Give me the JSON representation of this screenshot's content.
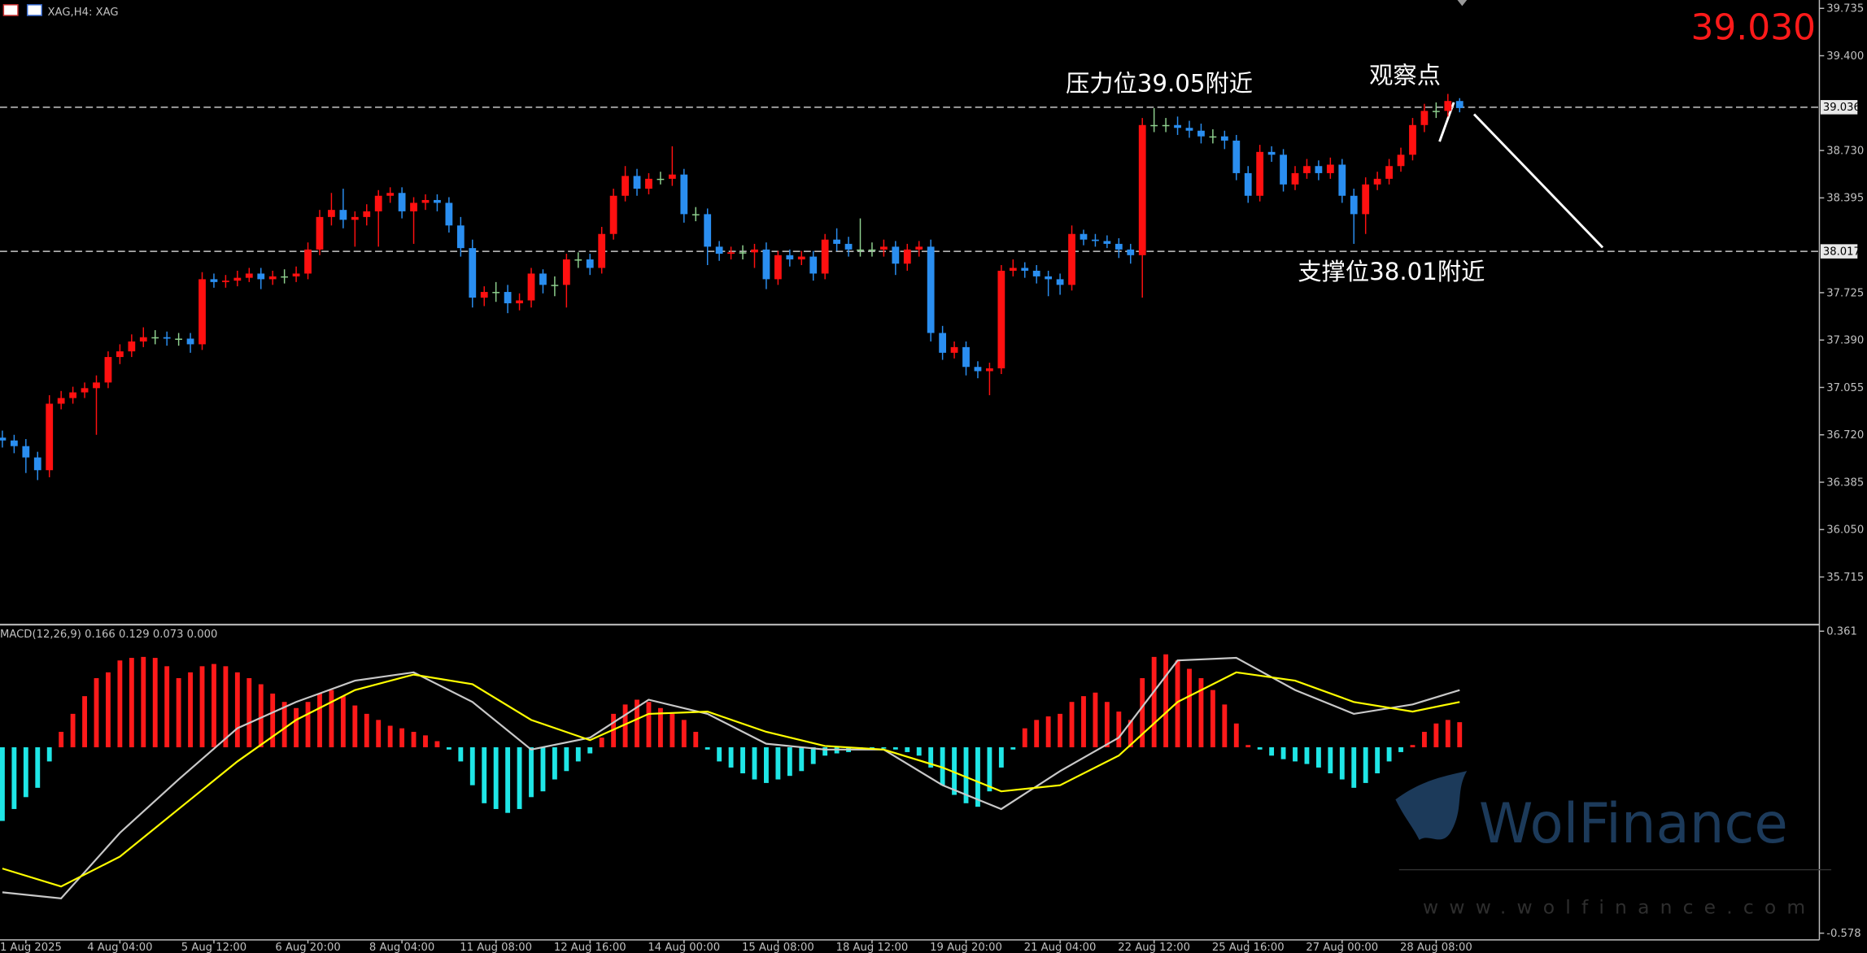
{
  "title": "XAG,H4: XAG",
  "last_price": {
    "value": 39.03,
    "label": "39.030"
  },
  "watermark": {
    "brand": "WolFinance",
    "url": "www.wolfinance.com"
  },
  "chart_data": [
    {
      "type": "candlestick",
      "up_color": "#ff1010",
      "down_color": "#2a8ef0",
      "doji_color": "#8fd18f",
      "ylim": [
        35.395,
        39.794
      ],
      "yticks": [
        39.735,
        {
          "value": 39.4,
          "label": "39.400"
        },
        {
          "value": 38.73,
          "label": "38.730"
        },
        38.395,
        37.725,
        {
          "value": 37.39,
          "label": "37.390"
        },
        37.055,
        {
          "value": 36.72,
          "label": "36.720"
        },
        36.385,
        {
          "value": 36.05,
          "label": "36.050"
        },
        35.715
      ],
      "levels": [
        {
          "value": 39.036,
          "label": "39.036"
        },
        {
          "value": 38.017,
          "label": "38.017"
        }
      ],
      "annotations": [
        "压力位39.05附近",
        "观察点",
        "支撑位38.01附近"
      ],
      "x_labels": [
        "1 Aug 2025",
        "4 Aug 04:00",
        "5 Aug 12:00",
        "6 Aug 20:00",
        "8 Aug 04:00",
        "11 Aug 08:00",
        "12 Aug 16:00",
        "14 Aug 00:00",
        "15 Aug 08:00",
        "18 Aug 12:00",
        "19 Aug 20:00",
        "21 Aug 04:00",
        "22 Aug 12:00",
        "25 Aug 16:00",
        "27 Aug 00:00",
        "28 Aug 08:00"
      ],
      "candles": [
        [
          36.7,
          36.75,
          36.63,
          36.68
        ],
        [
          36.68,
          36.72,
          36.59,
          36.64
        ],
        [
          36.64,
          36.69,
          36.45,
          36.56
        ],
        [
          36.56,
          36.6,
          36.4,
          36.47
        ],
        [
          36.47,
          37.0,
          36.42,
          36.94
        ],
        [
          36.94,
          37.03,
          36.9,
          36.98
        ],
        [
          36.98,
          37.06,
          36.94,
          37.02
        ],
        [
          37.02,
          37.09,
          36.98,
          37.05
        ],
        [
          37.05,
          37.14,
          36.72,
          37.09
        ],
        [
          37.09,
          37.31,
          37.05,
          37.27
        ],
        [
          37.27,
          37.36,
          37.22,
          37.31
        ],
        [
          37.31,
          37.43,
          37.27,
          37.38
        ],
        [
          37.38,
          37.48,
          37.34,
          37.41
        ],
        [
          37.41,
          37.46,
          37.36,
          37.41
        ],
        [
          37.41,
          37.45,
          37.35,
          37.4
        ],
        [
          37.4,
          37.44,
          37.35,
          37.4
        ],
        [
          37.4,
          37.44,
          37.3,
          37.36
        ],
        [
          37.36,
          37.87,
          37.32,
          37.82
        ],
        [
          37.82,
          37.86,
          37.76,
          37.8
        ],
        [
          37.8,
          37.85,
          37.76,
          37.81
        ],
        [
          37.81,
          37.88,
          37.77,
          37.83
        ],
        [
          37.83,
          37.9,
          37.8,
          37.86
        ],
        [
          37.86,
          37.9,
          37.75,
          37.82
        ],
        [
          37.82,
          37.88,
          37.78,
          37.84
        ],
        [
          37.84,
          37.89,
          37.79,
          37.84
        ],
        [
          37.84,
          37.91,
          37.8,
          37.86
        ],
        [
          37.86,
          38.08,
          37.82,
          38.03
        ],
        [
          38.03,
          38.31,
          37.99,
          38.26
        ],
        [
          38.26,
          38.43,
          38.2,
          38.31
        ],
        [
          38.31,
          38.46,
          38.18,
          38.24
        ],
        [
          38.24,
          38.3,
          38.05,
          38.26
        ],
        [
          38.26,
          38.35,
          38.2,
          38.3
        ],
        [
          38.3,
          38.45,
          38.05,
          38.41
        ],
        [
          38.41,
          38.47,
          38.36,
          38.43
        ],
        [
          38.43,
          38.47,
          38.25,
          38.3
        ],
        [
          38.3,
          38.4,
          38.07,
          38.36
        ],
        [
          38.36,
          38.42,
          38.31,
          38.38
        ],
        [
          38.38,
          38.42,
          38.3,
          38.36
        ],
        [
          38.36,
          38.4,
          38.15,
          38.2
        ],
        [
          38.2,
          38.26,
          37.98,
          38.04
        ],
        [
          38.04,
          38.1,
          37.62,
          37.69
        ],
        [
          37.69,
          37.77,
          37.63,
          37.73
        ],
        [
          37.73,
          37.8,
          37.66,
          37.73
        ],
        [
          37.73,
          37.78,
          37.58,
          37.65
        ],
        [
          37.65,
          37.72,
          37.6,
          37.67
        ],
        [
          37.67,
          37.9,
          37.62,
          37.86
        ],
        [
          37.86,
          37.89,
          37.72,
          37.78
        ],
        [
          37.78,
          37.84,
          37.7,
          37.78
        ],
        [
          37.78,
          38.0,
          37.62,
          37.96
        ],
        [
          37.96,
          38.01,
          37.9,
          37.96
        ],
        [
          37.96,
          38.0,
          37.85,
          37.9
        ],
        [
          37.9,
          38.19,
          37.86,
          38.14
        ],
        [
          38.14,
          38.46,
          38.1,
          38.41
        ],
        [
          38.41,
          38.62,
          38.37,
          38.55
        ],
        [
          38.55,
          38.6,
          38.41,
          38.46
        ],
        [
          38.46,
          38.57,
          38.42,
          38.53
        ],
        [
          38.53,
          38.58,
          38.49,
          38.53
        ],
        [
          38.53,
          38.76,
          38.48,
          38.56
        ],
        [
          38.56,
          38.6,
          38.22,
          38.28
        ],
        [
          38.28,
          38.33,
          38.23,
          38.28
        ],
        [
          38.28,
          38.32,
          37.92,
          38.05
        ],
        [
          38.05,
          38.09,
          37.95,
          38.0
        ],
        [
          38.0,
          38.05,
          37.96,
          38.01
        ],
        [
          38.01,
          38.06,
          37.96,
          38.01
        ],
        [
          38.01,
          38.07,
          37.9,
          38.03
        ],
        [
          38.03,
          38.08,
          37.75,
          37.82
        ],
        [
          37.82,
          38.02,
          37.78,
          37.99
        ],
        [
          37.99,
          38.03,
          37.91,
          37.96
        ],
        [
          37.96,
          38.02,
          37.92,
          37.98
        ],
        [
          37.98,
          38.02,
          37.81,
          37.86
        ],
        [
          37.86,
          38.14,
          37.82,
          38.1
        ],
        [
          38.1,
          38.18,
          38.02,
          38.07
        ],
        [
          38.07,
          38.12,
          37.98,
          38.03
        ],
        [
          38.03,
          38.25,
          37.98,
          38.03
        ],
        [
          38.03,
          38.08,
          37.98,
          38.03
        ],
        [
          38.03,
          38.1,
          37.98,
          38.05
        ],
        [
          38.05,
          38.09,
          37.85,
          37.93
        ],
        [
          37.93,
          38.07,
          37.88,
          38.03
        ],
        [
          38.03,
          38.09,
          37.98,
          38.05
        ],
        [
          38.05,
          38.1,
          37.38,
          37.44
        ],
        [
          37.44,
          37.49,
          37.25,
          37.3
        ],
        [
          37.3,
          37.38,
          37.26,
          37.34
        ],
        [
          37.34,
          37.38,
          37.14,
          37.2
        ],
        [
          37.2,
          37.24,
          37.12,
          37.17
        ],
        [
          37.17,
          37.23,
          37.0,
          37.19
        ],
        [
          37.19,
          37.92,
          37.15,
          37.88
        ],
        [
          37.88,
          37.96,
          37.84,
          37.9
        ],
        [
          37.9,
          37.94,
          37.83,
          37.88
        ],
        [
          37.88,
          37.92,
          37.79,
          37.84
        ],
        [
          37.84,
          37.88,
          37.7,
          37.82
        ],
        [
          37.82,
          37.86,
          37.71,
          37.78
        ],
        [
          37.78,
          38.2,
          37.74,
          38.14
        ],
        [
          38.14,
          38.17,
          38.06,
          38.1
        ],
        [
          38.1,
          38.14,
          38.05,
          38.09
        ],
        [
          38.09,
          38.13,
          38.04,
          38.07
        ],
        [
          38.07,
          38.11,
          37.97,
          38.03
        ],
        [
          38.03,
          38.07,
          37.93,
          37.99
        ],
        [
          37.99,
          38.96,
          37.69,
          38.91
        ],
        [
          38.91,
          39.03,
          38.86,
          38.91
        ],
        [
          38.91,
          38.96,
          38.86,
          38.91
        ],
        [
          38.91,
          38.97,
          38.84,
          38.89
        ],
        [
          38.89,
          38.94,
          38.82,
          38.87
        ],
        [
          38.87,
          38.92,
          38.78,
          38.83
        ],
        [
          38.83,
          38.88,
          38.78,
          38.83
        ],
        [
          38.83,
          38.87,
          38.74,
          38.8
        ],
        [
          38.8,
          38.84,
          38.52,
          38.57
        ],
        [
          38.57,
          38.62,
          38.36,
          38.41
        ],
        [
          38.41,
          38.77,
          38.37,
          38.72
        ],
        [
          38.72,
          38.76,
          38.65,
          38.7
        ],
        [
          38.7,
          38.74,
          38.44,
          38.49
        ],
        [
          38.49,
          38.62,
          38.45,
          38.57
        ],
        [
          38.57,
          38.67,
          38.53,
          38.62
        ],
        [
          38.62,
          38.66,
          38.52,
          38.57
        ],
        [
          38.57,
          38.68,
          38.53,
          38.63
        ],
        [
          38.63,
          38.67,
          38.36,
          38.41
        ],
        [
          38.41,
          38.46,
          38.07,
          38.28
        ],
        [
          38.28,
          38.54,
          38.14,
          38.49
        ],
        [
          38.49,
          38.58,
          38.45,
          38.53
        ],
        [
          38.53,
          38.67,
          38.49,
          38.62
        ],
        [
          38.62,
          38.75,
          38.58,
          38.7
        ],
        [
          38.7,
          38.96,
          38.66,
          38.91
        ],
        [
          38.91,
          39.06,
          38.86,
          39.01
        ],
        [
          39.01,
          39.07,
          38.96,
          39.01
        ],
        [
          39.01,
          39.13,
          38.97,
          39.08
        ],
        [
          39.08,
          39.1,
          39.0,
          39.03
        ]
      ]
    },
    {
      "type": "macd",
      "label": "MACD(12,26,9) 0.166 0.129 0.073 0.000",
      "ylim": [
        -0.599,
        0.374
      ],
      "yticks": [
        0.361,
        -0.578
      ],
      "histogram": {
        "pos_color": "#ff1a1a",
        "neg_color": "#1fe6e6",
        "values": [
          -0.229,
          -0.192,
          -0.155,
          -0.126,
          -0.044,
          0.048,
          0.104,
          0.159,
          0.215,
          0.233,
          0.27,
          0.278,
          0.281,
          0.278,
          0.252,
          0.215,
          0.233,
          0.252,
          0.259,
          0.252,
          0.233,
          0.215,
          0.196,
          0.167,
          0.141,
          0.122,
          0.141,
          0.167,
          0.178,
          0.159,
          0.13,
          0.104,
          0.085,
          0.067,
          0.059,
          0.048,
          0.037,
          0.019,
          -0.007,
          -0.044,
          -0.118,
          -0.174,
          -0.192,
          -0.204,
          -0.192,
          -0.155,
          -0.137,
          -0.1,
          -0.074,
          -0.044,
          -0.019,
          0.03,
          0.104,
          0.133,
          0.148,
          0.141,
          0.122,
          0.104,
          0.085,
          0.048,
          -0.007,
          -0.044,
          -0.063,
          -0.081,
          -0.1,
          -0.111,
          -0.1,
          -0.089,
          -0.074,
          -0.052,
          -0.026,
          -0.019,
          -0.015,
          -0.007,
          -0.007,
          -0.004,
          -0.007,
          -0.015,
          -0.026,
          -0.063,
          -0.118,
          -0.148,
          -0.174,
          -0.185,
          -0.137,
          -0.063,
          -0.007,
          0.059,
          0.085,
          0.096,
          0.104,
          0.141,
          0.159,
          0.17,
          0.141,
          0.111,
          0.085,
          0.215,
          0.281,
          0.289,
          0.27,
          0.244,
          0.215,
          0.178,
          0.133,
          0.074,
          0.007,
          -0.007,
          -0.026,
          -0.037,
          -0.044,
          -0.052,
          -0.063,
          -0.081,
          -0.1,
          -0.126,
          -0.111,
          -0.081,
          -0.044,
          -0.015,
          0.007,
          0.048,
          0.074,
          0.085,
          0.078
        ]
      },
      "series": [
        {
          "color": "#c8c8c8",
          "x": [
            0,
            5,
            10,
            15,
            20,
            25,
            30,
            35,
            40,
            45,
            50,
            55,
            60,
            65,
            70,
            75,
            80,
            85,
            90,
            95,
            100,
            105,
            110,
            115,
            120,
            124
          ],
          "values": [
            -0.451,
            -0.47,
            -0.266,
            -0.1,
            0.059,
            0.141,
            0.207,
            0.233,
            0.141,
            -0.007,
            0.03,
            0.148,
            0.104,
            0.011,
            -0.007,
            -0.007,
            -0.118,
            -0.192,
            -0.074,
            0.03,
            0.27,
            0.278,
            0.178,
            0.104,
            0.133,
            0.178
          ]
        },
        {
          "color": "#ffff00",
          "x": [
            0,
            5,
            10,
            15,
            20,
            25,
            30,
            35,
            40,
            45,
            50,
            55,
            60,
            65,
            70,
            75,
            80,
            85,
            90,
            95,
            100,
            105,
            110,
            115,
            120,
            124
          ],
          "values": [
            -0.377,
            -0.433,
            -0.34,
            -0.192,
            -0.044,
            0.085,
            0.178,
            0.226,
            0.196,
            0.085,
            0.022,
            0.104,
            0.111,
            0.048,
            0.004,
            -0.007,
            -0.063,
            -0.137,
            -0.118,
            -0.026,
            0.141,
            0.233,
            0.207,
            0.141,
            0.111,
            0.141
          ]
        }
      ]
    }
  ]
}
